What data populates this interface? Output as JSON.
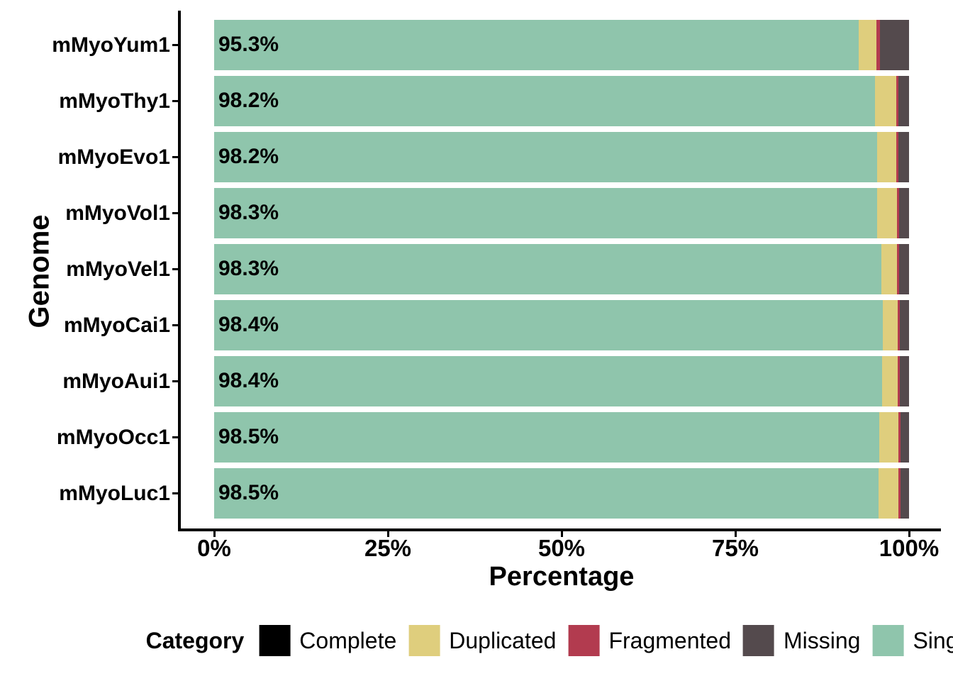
{
  "figure": {
    "background": "#ffffff",
    "text_color": "#000000",
    "axis_color": "#000000"
  },
  "chart_data": {
    "type": "bar",
    "orientation": "horizontal",
    "stacked": true,
    "title": "",
    "xlabel": "Percentage",
    "ylabel": "Genome",
    "xlim": [
      0,
      100
    ],
    "grid": false,
    "x_ticks": [
      {
        "value": 0,
        "label": "0%"
      },
      {
        "value": 25,
        "label": "25%"
      },
      {
        "value": 50,
        "label": "50%"
      },
      {
        "value": 75,
        "label": "75%"
      },
      {
        "value": 100,
        "label": "100%"
      }
    ],
    "categories": [
      "mMyoYum1",
      "mMyoThy1",
      "mMyoEvo1",
      "mMyoVol1",
      "mMyoVel1",
      "mMyoCai1",
      "mMyoAui1",
      "mMyoOcc1",
      "mMyoLuc1"
    ],
    "bar_labels": [
      "95.3%",
      "98.2%",
      "98.2%",
      "98.3%",
      "98.3%",
      "98.4%",
      "98.4%",
      "98.5%",
      "98.5%"
    ],
    "series": [
      {
        "name": "Single",
        "color": "#8FC5AC",
        "values": [
          92.8,
          95.1,
          95.4,
          95.4,
          96.0,
          96.2,
          96.1,
          95.7,
          95.6
        ]
      },
      {
        "name": "Duplicated",
        "color": "#DFCE7D",
        "values": [
          2.5,
          3.1,
          2.8,
          2.9,
          2.3,
          2.2,
          2.3,
          2.8,
          2.9
        ]
      },
      {
        "name": "Fragmented",
        "color": "#B23B4F",
        "values": [
          0.5,
          0.3,
          0.3,
          0.3,
          0.3,
          0.3,
          0.3,
          0.3,
          0.3
        ]
      },
      {
        "name": "Missing",
        "color": "#544A4D",
        "values": [
          4.2,
          1.5,
          1.5,
          1.4,
          1.4,
          1.3,
          1.3,
          1.2,
          1.2
        ]
      }
    ],
    "legend": {
      "title": "Category",
      "position": "bottom",
      "entries": [
        {
          "label": "Complete",
          "color": "#000000"
        },
        {
          "label": "Duplicated",
          "color": "#DFCE7D"
        },
        {
          "label": "Fragmented",
          "color": "#B23B4F"
        },
        {
          "label": "Missing",
          "color": "#544A4D"
        },
        {
          "label": "Single",
          "color": "#8FC5AC"
        }
      ]
    }
  }
}
